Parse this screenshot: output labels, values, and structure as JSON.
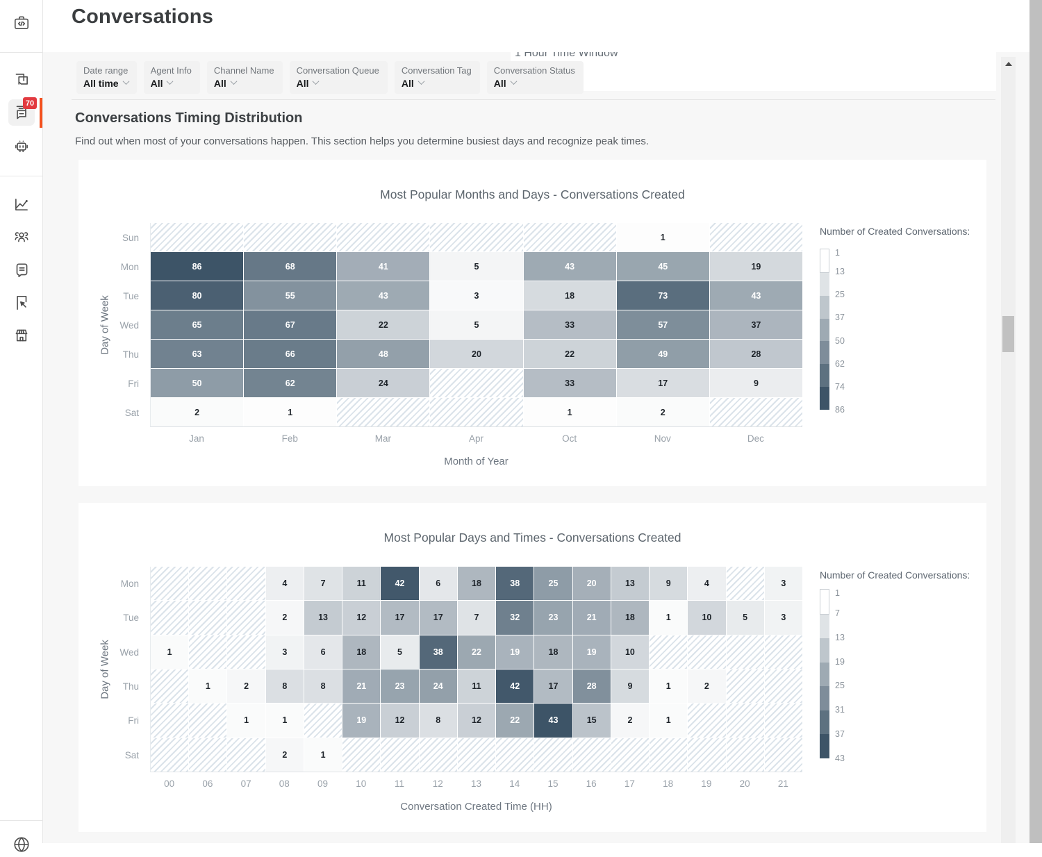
{
  "page": {
    "title": "Conversations"
  },
  "sidebar": {
    "badge": "70",
    "icons": [
      "dev-tools-icon",
      "conversation-review-icon",
      "conversations-icon",
      "chatbot-icon",
      "analytics-icon",
      "team-icon",
      "knowledge-base-icon",
      "engage-flag-icon",
      "marketplace-icon",
      "globe-icon"
    ]
  },
  "time_window_label": "1 Hour Time Window",
  "filters": [
    {
      "label": "Date range",
      "value": "All time"
    },
    {
      "label": "Agent Info",
      "value": "All"
    },
    {
      "label": "Channel Name",
      "value": "All"
    },
    {
      "label": "Conversation Queue",
      "value": "All"
    },
    {
      "label": "Conversation Tag",
      "value": "All"
    },
    {
      "label": "Conversation Status",
      "value": "All"
    }
  ],
  "section": {
    "title": "Conversations Timing Distribution",
    "subtitle": "Find out when most of your conversations happen. This section helps you determine busiest days and recognize peak times."
  },
  "colors": {
    "accent_orange": "#f4511e",
    "badge_red": "#e23a40",
    "heat_high": "#3d5467",
    "hatch": "#dbe3ea"
  },
  "chart_data": [
    {
      "type": "heatmap",
      "title": "Most Popular Months and Days - Conversations Created",
      "xlabel": "Month of Year",
      "ylabel": "Day of Week",
      "legend_title": "Number of Created Conversations:",
      "legend_ticks": [
        1,
        13,
        25,
        37,
        50,
        62,
        74,
        86
      ],
      "columns": [
        "Jan",
        "Feb",
        "Mar",
        "Apr",
        "Oct",
        "Nov",
        "Dec"
      ],
      "rows": [
        "Sun",
        "Mon",
        "Tue",
        "Wed",
        "Thu",
        "Fri",
        "Sat"
      ],
      "values": [
        [
          null,
          null,
          null,
          null,
          null,
          1,
          null
        ],
        [
          86,
          68,
          41,
          5,
          43,
          45,
          19
        ],
        [
          80,
          55,
          43,
          3,
          18,
          73,
          43
        ],
        [
          65,
          67,
          22,
          5,
          33,
          57,
          37
        ],
        [
          63,
          66,
          48,
          20,
          22,
          49,
          28
        ],
        [
          50,
          62,
          24,
          null,
          33,
          17,
          9
        ],
        [
          2,
          1,
          null,
          null,
          1,
          2,
          null
        ]
      ],
      "max": 86,
      "note_null_cells": "hatched = no data"
    },
    {
      "type": "heatmap",
      "title": "Most Popular Days and Times - Conversations Created",
      "xlabel": "Conversation Created Time (HH)",
      "ylabel": "Day of Week",
      "legend_title": "Number of Created Conversations:",
      "legend_ticks": [
        1,
        7,
        13,
        19,
        25,
        31,
        37,
        43
      ],
      "columns": [
        "00",
        "06",
        "07",
        "08",
        "09",
        "10",
        "11",
        "12",
        "13",
        "14",
        "15",
        "16",
        "17",
        "18",
        "19",
        "20",
        "21"
      ],
      "rows": [
        "Mon",
        "Tue",
        "Wed",
        "Thu",
        "Fri",
        "Sat"
      ],
      "values": [
        [
          null,
          null,
          null,
          4,
          7,
          11,
          42,
          6,
          18,
          38,
          25,
          20,
          13,
          9,
          4,
          null,
          3
        ],
        [
          null,
          null,
          null,
          2,
          13,
          12,
          17,
          17,
          7,
          32,
          23,
          21,
          18,
          1,
          10,
          5,
          3
        ],
        [
          1,
          null,
          null,
          3,
          6,
          18,
          5,
          38,
          22,
          19,
          18,
          19,
          10,
          null,
          null,
          null,
          null
        ],
        [
          null,
          1,
          2,
          8,
          8,
          21,
          23,
          24,
          11,
          42,
          17,
          28,
          9,
          1,
          2,
          null,
          null
        ],
        [
          null,
          null,
          1,
          1,
          null,
          19,
          12,
          8,
          12,
          22,
          43,
          15,
          2,
          1,
          null,
          null,
          null
        ],
        [
          null,
          null,
          null,
          2,
          1,
          null,
          null,
          null,
          null,
          null,
          null,
          null,
          null,
          null,
          null,
          null,
          null
        ]
      ],
      "max": 43,
      "note_null_cells": "hatched = no data"
    }
  ]
}
